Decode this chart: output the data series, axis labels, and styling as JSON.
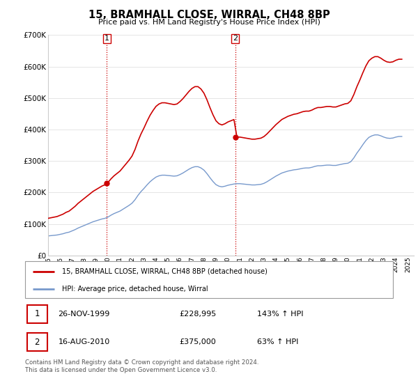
{
  "title": "15, BRAMHALL CLOSE, WIRRAL, CH48 8BP",
  "subtitle": "Price paid vs. HM Land Registry's House Price Index (HPI)",
  "ylim": [
    0,
    700000
  ],
  "yticks": [
    0,
    100000,
    200000,
    300000,
    400000,
    500000,
    600000,
    700000
  ],
  "ytick_labels": [
    "£0",
    "£100K",
    "£200K",
    "£300K",
    "£400K",
    "£500K",
    "£600K",
    "£700K"
  ],
  "hpi_color": "#7799cc",
  "price_color": "#cc0000",
  "transaction1": {
    "year": 1999.9,
    "price": 228995,
    "label": "1"
  },
  "transaction2": {
    "year": 2010.6,
    "price": 375000,
    "label": "2"
  },
  "legend_line1": "15, BRAMHALL CLOSE, WIRRAL, CH48 8BP (detached house)",
  "legend_line2": "HPI: Average price, detached house, Wirral",
  "table_row1": [
    "1",
    "26-NOV-1999",
    "£228,995",
    "143% ↑ HPI"
  ],
  "table_row2": [
    "2",
    "16-AUG-2010",
    "£375,000",
    "63% ↑ HPI"
  ],
  "footer": "Contains HM Land Registry data © Crown copyright and database right 2024.\nThis data is licensed under the Open Government Licence v3.0.",
  "hpi_data_x": [
    1995.0,
    1995.25,
    1995.5,
    1995.75,
    1996.0,
    1996.25,
    1996.5,
    1996.75,
    1997.0,
    1997.25,
    1997.5,
    1997.75,
    1998.0,
    1998.25,
    1998.5,
    1998.75,
    1999.0,
    1999.25,
    1999.5,
    1999.75,
    2000.0,
    2000.25,
    2000.5,
    2000.75,
    2001.0,
    2001.25,
    2001.5,
    2001.75,
    2002.0,
    2002.25,
    2002.5,
    2002.75,
    2003.0,
    2003.25,
    2003.5,
    2003.75,
    2004.0,
    2004.25,
    2004.5,
    2004.75,
    2005.0,
    2005.25,
    2005.5,
    2005.75,
    2006.0,
    2006.25,
    2006.5,
    2006.75,
    2007.0,
    2007.25,
    2007.5,
    2007.75,
    2008.0,
    2008.25,
    2008.5,
    2008.75,
    2009.0,
    2009.25,
    2009.5,
    2009.75,
    2010.0,
    2010.25,
    2010.5,
    2010.75,
    2011.0,
    2011.25,
    2011.5,
    2011.75,
    2012.0,
    2012.25,
    2012.5,
    2012.75,
    2013.0,
    2013.25,
    2013.5,
    2013.75,
    2014.0,
    2014.25,
    2014.5,
    2014.75,
    2015.0,
    2015.25,
    2015.5,
    2015.75,
    2016.0,
    2016.25,
    2016.5,
    2016.75,
    2017.0,
    2017.25,
    2017.5,
    2017.75,
    2018.0,
    2018.25,
    2018.5,
    2018.75,
    2019.0,
    2019.25,
    2019.5,
    2019.75,
    2020.0,
    2020.25,
    2020.5,
    2020.75,
    2021.0,
    2021.25,
    2021.5,
    2021.75,
    2022.0,
    2022.25,
    2022.5,
    2022.75,
    2023.0,
    2023.25,
    2023.5,
    2023.75,
    2024.0,
    2024.25,
    2024.5
  ],
  "hpi_data_y": [
    62000,
    63000,
    64000,
    65000,
    67000,
    69000,
    72000,
    74000,
    78000,
    82000,
    87000,
    91000,
    95000,
    99000,
    103000,
    107000,
    110000,
    113000,
    116000,
    118000,
    122000,
    128000,
    133000,
    137000,
    141000,
    147000,
    153000,
    159000,
    166000,
    177000,
    191000,
    203000,
    213000,
    224000,
    234000,
    242000,
    249000,
    253000,
    255000,
    255000,
    254000,
    253000,
    252000,
    253000,
    257000,
    262000,
    268000,
    274000,
    279000,
    282000,
    282000,
    278000,
    271000,
    260000,
    247000,
    235000,
    225000,
    220000,
    218000,
    220000,
    223000,
    225000,
    227000,
    228000,
    228000,
    227000,
    226000,
    225000,
    224000,
    224000,
    225000,
    226000,
    229000,
    234000,
    240000,
    246000,
    252000,
    257000,
    262000,
    265000,
    268000,
    270000,
    272000,
    273000,
    275000,
    277000,
    278000,
    278000,
    280000,
    283000,
    285000,
    285000,
    286000,
    287000,
    287000,
    286000,
    286000,
    288000,
    290000,
    292000,
    293000,
    298000,
    310000,
    325000,
    338000,
    352000,
    365000,
    375000,
    380000,
    383000,
    383000,
    380000,
    376000,
    373000,
    372000,
    373000,
    376000,
    378000,
    378000
  ],
  "xlim": [
    1995,
    2025.5
  ],
  "xtick_years": [
    1995,
    1996,
    1997,
    1998,
    1999,
    2000,
    2001,
    2002,
    2003,
    2004,
    2005,
    2006,
    2007,
    2008,
    2009,
    2010,
    2011,
    2012,
    2013,
    2014,
    2015,
    2016,
    2017,
    2018,
    2019,
    2020,
    2021,
    2022,
    2023,
    2024,
    2025
  ]
}
